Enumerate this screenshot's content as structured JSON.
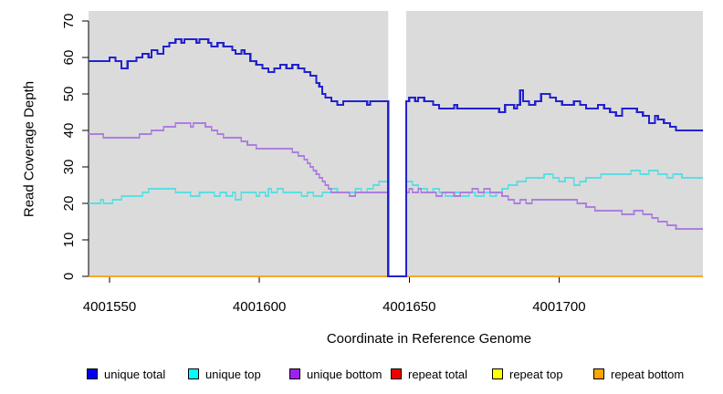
{
  "chart_data": {
    "type": "line",
    "subtype": "step-coverage",
    "xlabel": "Coordinate in Reference Genome",
    "ylabel": "Read Coverage Depth",
    "x_domain": [
      4001543,
      4001748
    ],
    "ylim": [
      0,
      70
    ],
    "x_ticks": [
      4001550,
      4001600,
      4001650,
      4001700
    ],
    "y_ticks": [
      0,
      10,
      20,
      30,
      40,
      50,
      60,
      70
    ],
    "panel_bg": "#DBDBDB",
    "grid": false,
    "legend_position": "bottom",
    "gap_region": {
      "start": 4001643,
      "end": 4001649,
      "color": "#FFFFFF"
    },
    "series": [
      {
        "name": "unique total",
        "color": "#2222CE",
        "legend_color": "#0000EE",
        "width": 2.2,
        "points": [
          [
            4001543,
            59
          ],
          [
            4001550,
            60
          ],
          [
            4001552,
            59
          ],
          [
            4001554,
            57
          ],
          [
            4001556,
            59
          ],
          [
            4001559,
            60
          ],
          [
            4001561,
            61
          ],
          [
            4001563,
            60
          ],
          [
            4001564,
            62
          ],
          [
            4001566,
            61
          ],
          [
            4001568,
            63
          ],
          [
            4001570,
            64
          ],
          [
            4001572,
            65
          ],
          [
            4001574,
            64
          ],
          [
            4001575,
            65
          ],
          [
            4001579,
            64
          ],
          [
            4001580,
            65
          ],
          [
            4001583,
            64
          ],
          [
            4001584,
            63
          ],
          [
            4001586,
            64
          ],
          [
            4001588,
            63
          ],
          [
            4001591,
            62
          ],
          [
            4001592,
            61
          ],
          [
            4001594,
            62
          ],
          [
            4001595,
            61
          ],
          [
            4001597,
            59
          ],
          [
            4001599,
            58
          ],
          [
            4001601,
            57
          ],
          [
            4001603,
            56
          ],
          [
            4001605,
            57
          ],
          [
            4001607,
            58
          ],
          [
            4001609,
            57
          ],
          [
            4001611,
            58
          ],
          [
            4001613,
            57
          ],
          [
            4001615,
            56
          ],
          [
            4001617,
            55
          ],
          [
            4001619,
            53
          ],
          [
            4001620,
            52
          ],
          [
            4001621,
            50
          ],
          [
            4001622,
            49
          ],
          [
            4001624,
            48
          ],
          [
            4001626,
            47
          ],
          [
            4001628,
            48
          ],
          [
            4001636,
            47
          ],
          [
            4001637,
            48
          ],
          [
            4001643,
            0
          ],
          [
            4001649,
            48
          ],
          [
            4001650,
            49
          ],
          [
            4001652,
            48
          ],
          [
            4001653,
            49
          ],
          [
            4001655,
            48
          ],
          [
            4001658,
            47
          ],
          [
            4001660,
            46
          ],
          [
            4001665,
            47
          ],
          [
            4001666,
            46
          ],
          [
            4001680,
            45
          ],
          [
            4001682,
            47
          ],
          [
            4001685,
            46
          ],
          [
            4001686,
            47
          ],
          [
            4001687,
            51
          ],
          [
            4001688,
            48
          ],
          [
            4001690,
            47
          ],
          [
            4001692,
            48
          ],
          [
            4001694,
            50
          ],
          [
            4001697,
            49
          ],
          [
            4001699,
            48
          ],
          [
            4001701,
            47
          ],
          [
            4001705,
            48
          ],
          [
            4001707,
            47
          ],
          [
            4001709,
            46
          ],
          [
            4001713,
            47
          ],
          [
            4001715,
            46
          ],
          [
            4001717,
            45
          ],
          [
            4001719,
            44
          ],
          [
            4001721,
            46
          ],
          [
            4001726,
            45
          ],
          [
            4001728,
            44
          ],
          [
            4001730,
            42
          ],
          [
            4001732,
            44
          ],
          [
            4001733,
            43
          ],
          [
            4001735,
            42
          ],
          [
            4001737,
            41
          ],
          [
            4001739,
            40
          ]
        ]
      },
      {
        "name": "unique top",
        "color": "#5CDEE2",
        "legend_color": "#00FFFF",
        "width": 1.6,
        "points": [
          [
            4001543,
            20
          ],
          [
            4001547,
            21
          ],
          [
            4001548,
            20
          ],
          [
            4001551,
            21
          ],
          [
            4001554,
            22
          ],
          [
            4001561,
            23
          ],
          [
            4001563,
            24
          ],
          [
            4001572,
            23
          ],
          [
            4001577,
            22
          ],
          [
            4001580,
            23
          ],
          [
            4001585,
            22
          ],
          [
            4001587,
            23
          ],
          [
            4001589,
            22
          ],
          [
            4001591,
            23
          ],
          [
            4001592,
            21
          ],
          [
            4001594,
            23
          ],
          [
            4001599,
            22
          ],
          [
            4001600,
            23
          ],
          [
            4001602,
            22
          ],
          [
            4001603,
            24
          ],
          [
            4001604,
            23
          ],
          [
            4001606,
            24
          ],
          [
            4001608,
            23
          ],
          [
            4001614,
            22
          ],
          [
            4001616,
            23
          ],
          [
            4001618,
            22
          ],
          [
            4001621,
            23
          ],
          [
            4001624,
            24
          ],
          [
            4001626,
            23
          ],
          [
            4001632,
            24
          ],
          [
            4001634,
            23
          ],
          [
            4001636,
            24
          ],
          [
            4001638,
            25
          ],
          [
            4001640,
            26
          ],
          [
            4001651,
            25
          ],
          [
            4001653,
            24
          ],
          [
            4001656,
            23
          ],
          [
            4001658,
            24
          ],
          [
            4001660,
            23
          ],
          [
            4001662,
            22
          ],
          [
            4001665,
            23
          ],
          [
            4001667,
            22
          ],
          [
            4001670,
            23
          ],
          [
            4001672,
            22
          ],
          [
            4001675,
            23
          ],
          [
            4001677,
            22
          ],
          [
            4001679,
            23
          ],
          [
            4001681,
            24
          ],
          [
            4001683,
            25
          ],
          [
            4001686,
            26
          ],
          [
            4001689,
            27
          ],
          [
            4001695,
            28
          ],
          [
            4001698,
            27
          ],
          [
            4001700,
            26
          ],
          [
            4001702,
            27
          ],
          [
            4001705,
            25
          ],
          [
            4001707,
            26
          ],
          [
            4001709,
            27
          ],
          [
            4001714,
            28
          ],
          [
            4001724,
            29
          ],
          [
            4001727,
            28
          ],
          [
            4001730,
            29
          ],
          [
            4001733,
            28
          ],
          [
            4001736,
            27
          ],
          [
            4001738,
            28
          ],
          [
            4001741,
            27
          ]
        ]
      },
      {
        "name": "unique bottom",
        "color": "#AB7FDE",
        "legend_color": "#A020F0",
        "width": 1.6,
        "points": [
          [
            4001543,
            39
          ],
          [
            4001548,
            38
          ],
          [
            4001560,
            39
          ],
          [
            4001564,
            40
          ],
          [
            4001568,
            41
          ],
          [
            4001572,
            42
          ],
          [
            4001577,
            41
          ],
          [
            4001578,
            42
          ],
          [
            4001582,
            41
          ],
          [
            4001584,
            40
          ],
          [
            4001586,
            39
          ],
          [
            4001588,
            38
          ],
          [
            4001594,
            37
          ],
          [
            4001596,
            36
          ],
          [
            4001599,
            35
          ],
          [
            4001611,
            34
          ],
          [
            4001613,
            33
          ],
          [
            4001615,
            32
          ],
          [
            4001616,
            31
          ],
          [
            4001617,
            30
          ],
          [
            4001618,
            29
          ],
          [
            4001619,
            28
          ],
          [
            4001620,
            27
          ],
          [
            4001621,
            26
          ],
          [
            4001622,
            25
          ],
          [
            4001623,
            24
          ],
          [
            4001624,
            23
          ],
          [
            4001630,
            22
          ],
          [
            4001632,
            23
          ],
          [
            4001650,
            24
          ],
          [
            4001651,
            23
          ],
          [
            4001653,
            24
          ],
          [
            4001654,
            23
          ],
          [
            4001659,
            22
          ],
          [
            4001661,
            23
          ],
          [
            4001665,
            22
          ],
          [
            4001667,
            23
          ],
          [
            4001671,
            24
          ],
          [
            4001673,
            23
          ],
          [
            4001675,
            24
          ],
          [
            4001677,
            23
          ],
          [
            4001681,
            22
          ],
          [
            4001683,
            21
          ],
          [
            4001685,
            20
          ],
          [
            4001687,
            21
          ],
          [
            4001689,
            20
          ],
          [
            4001691,
            21
          ],
          [
            4001706,
            20
          ],
          [
            4001709,
            19
          ],
          [
            4001712,
            18
          ],
          [
            4001721,
            17
          ],
          [
            4001725,
            18
          ],
          [
            4001728,
            17
          ],
          [
            4001731,
            16
          ],
          [
            4001733,
            15
          ],
          [
            4001736,
            14
          ],
          [
            4001739,
            13
          ]
        ]
      },
      {
        "name": "repeat total",
        "color": "#DD0000",
        "legend_color": "#EE0000",
        "width": 2,
        "points": [
          [
            4001543,
            0
          ]
        ]
      },
      {
        "name": "repeat top",
        "color": "#E8E800",
        "legend_color": "#FFFF00",
        "width": 2,
        "points": [
          [
            4001543,
            0
          ]
        ]
      },
      {
        "name": "repeat bottom",
        "color": "#FFA428",
        "legend_color": "#FFA500",
        "width": 2.2,
        "points": [
          [
            4001543,
            0
          ]
        ]
      }
    ]
  },
  "legend": {
    "labels": [
      "unique total",
      "unique top",
      "unique bottom",
      "repeat total",
      "repeat top",
      "repeat bottom"
    ]
  }
}
